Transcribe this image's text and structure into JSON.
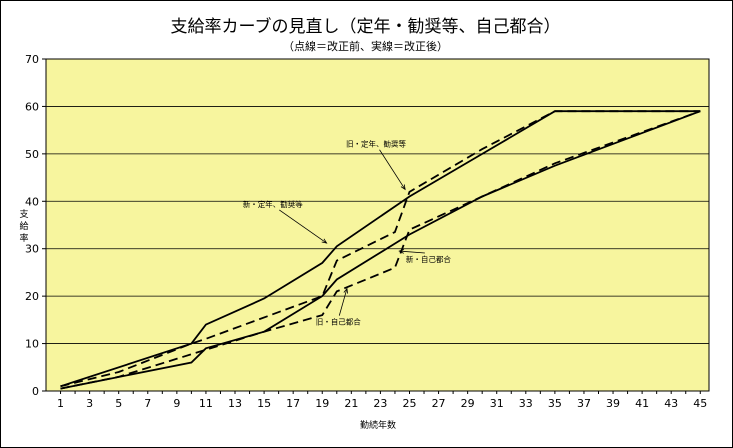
{
  "title": "支給率カーブの見直し（定年・勧奨等、自己都合）",
  "subtitle": "（点線＝改正前、実線＝改正後）",
  "chart_data": {
    "type": "line",
    "xlabel": "勤続年数",
    "ylabel": "支給率",
    "xlim": [
      1,
      45
    ],
    "ylim": [
      0,
      70
    ],
    "yticks": [
      0,
      10,
      20,
      30,
      40,
      50,
      60,
      70
    ],
    "xticks": [
      1,
      3,
      5,
      7,
      9,
      11,
      13,
      15,
      17,
      19,
      21,
      23,
      25,
      27,
      29,
      31,
      33,
      35,
      37,
      39,
      41,
      43,
      45
    ],
    "grid": "horizontal",
    "plot_background": "#f7f59e",
    "series": [
      {
        "key": "new-teinen",
        "style": "solid",
        "points": [
          [
            1,
            1
          ],
          [
            10,
            10
          ],
          [
            11,
            14
          ],
          [
            15,
            19.5
          ],
          [
            19,
            27
          ],
          [
            20,
            30.5
          ],
          [
            25,
            41
          ],
          [
            30,
            50
          ],
          [
            35,
            59
          ],
          [
            45,
            59
          ]
        ]
      },
      {
        "key": "old-teinen",
        "style": "dashed",
        "points": [
          [
            1,
            1
          ],
          [
            5,
            4
          ],
          [
            10,
            10
          ],
          [
            11,
            11
          ],
          [
            19,
            20
          ],
          [
            20,
            27.5
          ],
          [
            24,
            33.5
          ],
          [
            25,
            42
          ],
          [
            30,
            51
          ],
          [
            35,
            59
          ],
          [
            45,
            59
          ]
        ]
      },
      {
        "key": "new-jiko",
        "style": "solid",
        "points": [
          [
            1,
            0.5
          ],
          [
            10,
            6
          ],
          [
            11,
            9
          ],
          [
            15,
            12.5
          ],
          [
            19,
            20
          ],
          [
            20,
            23.5
          ],
          [
            25,
            33
          ],
          [
            30,
            41
          ],
          [
            35,
            47.5
          ],
          [
            45,
            59
          ]
        ]
      },
      {
        "key": "old-jiko",
        "style": "dashed",
        "points": [
          [
            1,
            0.5
          ],
          [
            5,
            3
          ],
          [
            15,
            12.5
          ],
          [
            19,
            16
          ],
          [
            20,
            21
          ],
          [
            24,
            26
          ],
          [
            25,
            34
          ],
          [
            30,
            41
          ],
          [
            35,
            48
          ],
          [
            45,
            59
          ]
        ]
      }
    ],
    "annotations": [
      {
        "key": "old-teinen-label",
        "text": "旧・定年、勧奨等",
        "x": 22.7,
        "y": 51.5,
        "ax": 24.7,
        "ay": 42.5
      },
      {
        "key": "new-teinen-label",
        "text": "新・定年、勧奨等",
        "x": 15.6,
        "y": 38.8,
        "ax": 19.3,
        "ay": 31.2
      },
      {
        "key": "new-jiko-label",
        "text": "新・自己都合",
        "x": 26.3,
        "y": 27.2,
        "ax": 24.3,
        "ay": 29.5
      },
      {
        "key": "old-jiko-label",
        "text": "旧・自己都合",
        "x": 20.1,
        "y": 14.0,
        "ax": 20.7,
        "ay": 21.6
      }
    ]
  }
}
